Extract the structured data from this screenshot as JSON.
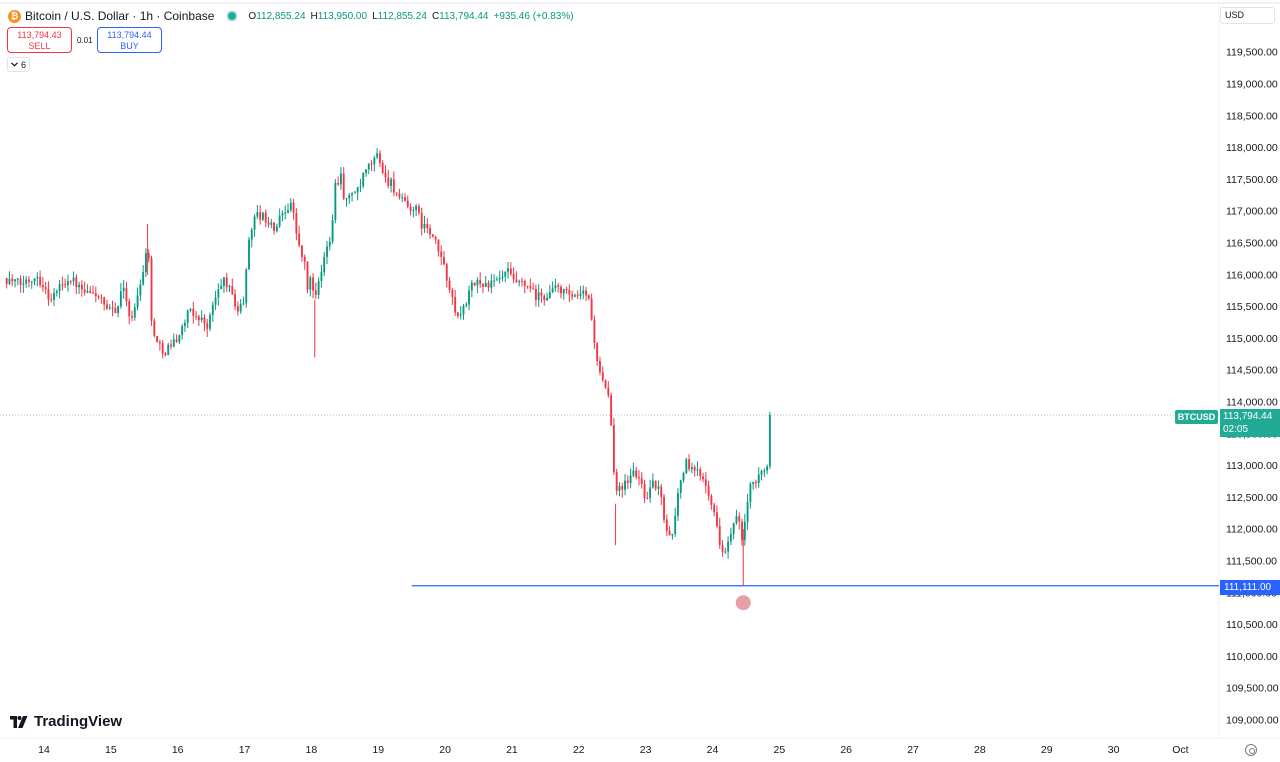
{
  "header": {
    "symbol_title": "Bitcoin / U.S. Dollar · 1h · Coinbase",
    "ohlc": {
      "open_label": "O",
      "open": "112,855.24",
      "high_label": "H",
      "high": "113,950.00",
      "low_label": "L",
      "low": "112,855.24",
      "close_label": "C",
      "close": "113,794.44",
      "change": "+935.46 (+0.83%)"
    }
  },
  "trade": {
    "sell_price": "113,794.43",
    "sell_label": "SELL",
    "spread": "0.01",
    "buy_price": "113,794.44",
    "buy_label": "BUY"
  },
  "indicators_count": "6",
  "currency": "USD",
  "symbol_tag": "BTCUSD",
  "price_tag": {
    "price": "113,794.44",
    "countdown": "02:05"
  },
  "level_tag": "111,111.00",
  "logo_text": "TradingView",
  "colors": {
    "up": "#089981",
    "down": "#f23645",
    "level_line": "#2962ff",
    "price_tag": "#22ab94",
    "marker": "#e8a0a8",
    "axis_text": "#131722"
  },
  "icons": [
    "bitcoin-icon",
    "live-status-icon",
    "chevron-down-icon",
    "tradingview-logo-icon",
    "settings-icon"
  ],
  "chart_data": {
    "type": "candlestick",
    "xlabel": "",
    "ylabel": "",
    "grid": false,
    "x_ticks": [
      "14",
      "15",
      "16",
      "17",
      "18",
      "19",
      "20",
      "21",
      "22",
      "23",
      "24",
      "25",
      "26",
      "27",
      "28",
      "29",
      "30",
      "Oct"
    ],
    "y_ticks": [
      "109,000.00",
      "109,500.00",
      "110,000.00",
      "110,500.00",
      "111,000.00",
      "111,500.00",
      "112,000.00",
      "112,500.00",
      "113,000.00",
      "113,500.00",
      "114,000.00",
      "114,500.00",
      "115,000.00",
      "115,500.00",
      "116,000.00",
      "116,500.00",
      "117,000.00",
      "117,500.00",
      "118,000.00",
      "118,500.00",
      "119,000.00",
      "119,500.00"
    ],
    "ylim": [
      108800,
      120200
    ],
    "x_range": [
      "Sep 13 18:00",
      "Oct 1 02:00"
    ],
    "x_unit": "days",
    "last_price": 113794.44,
    "horizontal_level": {
      "price": 111111.0,
      "from_day": 19.5
    },
    "marker_day": 24.46,
    "waypoints": [
      [
        13.4,
        115950
      ],
      [
        13.65,
        115850
      ],
      [
        13.9,
        116000
      ],
      [
        14.1,
        115600
      ],
      [
        14.25,
        115850
      ],
      [
        14.4,
        115950
      ],
      [
        14.6,
        115700
      ],
      [
        14.8,
        115700
      ],
      [
        14.95,
        115400
      ],
      [
        15.1,
        115500
      ],
      [
        15.2,
        115850
      ],
      [
        15.3,
        115200
      ],
      [
        15.45,
        115950
      ],
      [
        15.5,
        116100
      ],
      [
        15.55,
        116700
      ],
      [
        15.6,
        115300
      ],
      [
        15.7,
        114900
      ],
      [
        15.8,
        114800
      ],
      [
        15.9,
        114900
      ],
      [
        16.05,
        115100
      ],
      [
        16.15,
        115400
      ],
      [
        16.3,
        115350
      ],
      [
        16.45,
        115200
      ],
      [
        16.55,
        115600
      ],
      [
        16.7,
        115950
      ],
      [
        16.8,
        115700
      ],
      [
        16.9,
        115450
      ],
      [
        17.0,
        115600
      ],
      [
        17.05,
        116500
      ],
      [
        17.15,
        116950
      ],
      [
        17.3,
        116900
      ],
      [
        17.45,
        116700
      ],
      [
        17.55,
        116950
      ],
      [
        17.7,
        117150
      ],
      [
        17.8,
        116500
      ],
      [
        17.9,
        116150
      ],
      [
        17.95,
        115700
      ],
      [
        18.0,
        116050
      ],
      [
        18.05,
        115550
      ],
      [
        18.12,
        115900
      ],
      [
        18.2,
        116300
      ],
      [
        18.3,
        116700
      ],
      [
        18.35,
        117400
      ],
      [
        18.45,
        117600
      ],
      [
        18.5,
        117100
      ],
      [
        18.55,
        117200
      ],
      [
        18.6,
        117300
      ],
      [
        18.7,
        117300
      ],
      [
        18.8,
        117600
      ],
      [
        18.9,
        117750
      ],
      [
        19.0,
        117900
      ],
      [
        19.1,
        117500
      ],
      [
        19.2,
        117450
      ],
      [
        19.3,
        117200
      ],
      [
        19.45,
        117050
      ],
      [
        19.55,
        117050
      ],
      [
        19.65,
        116800
      ],
      [
        19.75,
        116700
      ],
      [
        19.85,
        116500
      ],
      [
        19.95,
        116250
      ],
      [
        20.0,
        116050
      ],
      [
        20.05,
        115900
      ],
      [
        20.1,
        115600
      ],
      [
        20.15,
        115450
      ],
      [
        20.2,
        115300
      ],
      [
        20.3,
        115550
      ],
      [
        20.4,
        115800
      ],
      [
        20.5,
        115900
      ],
      [
        20.6,
        115850
      ],
      [
        20.7,
        115850
      ],
      [
        20.8,
        115900
      ],
      [
        20.95,
        116050
      ],
      [
        21.0,
        115900
      ],
      [
        21.1,
        115850
      ],
      [
        21.25,
        115800
      ],
      [
        21.35,
        115650
      ],
      [
        21.5,
        115650
      ],
      [
        21.6,
        115750
      ],
      [
        21.7,
        115800
      ],
      [
        21.8,
        115700
      ],
      [
        21.9,
        115650
      ],
      [
        21.95,
        115600
      ],
      [
        22.05,
        115700
      ],
      [
        22.15,
        115650
      ],
      [
        22.2,
        115200
      ],
      [
        22.3,
        114500
      ],
      [
        22.35,
        114300
      ],
      [
        22.45,
        114050
      ],
      [
        22.55,
        112600
      ],
      [
        22.6,
        112700
      ],
      [
        22.7,
        112700
      ],
      [
        22.8,
        112900
      ],
      [
        22.9,
        112800
      ],
      [
        23.0,
        112500
      ],
      [
        23.1,
        112700
      ],
      [
        23.2,
        112650
      ],
      [
        23.3,
        112050
      ],
      [
        23.4,
        111900
      ],
      [
        23.5,
        112700
      ],
      [
        23.6,
        113050
      ],
      [
        23.7,
        112900
      ],
      [
        23.8,
        112900
      ],
      [
        23.9,
        112750
      ],
      [
        24.0,
        112400
      ],
      [
        24.1,
        111800
      ],
      [
        24.2,
        111650
      ],
      [
        24.3,
        112000
      ],
      [
        24.38,
        112250
      ],
      [
        24.42,
        111850
      ],
      [
        24.46,
        111800
      ],
      [
        24.5,
        112300
      ],
      [
        24.55,
        112600
      ],
      [
        24.6,
        112700
      ],
      [
        24.68,
        112750
      ],
      [
        24.75,
        112950
      ],
      [
        24.8,
        113050
      ],
      [
        24.85,
        112860
      ],
      [
        24.88,
        113794
      ]
    ]
  }
}
